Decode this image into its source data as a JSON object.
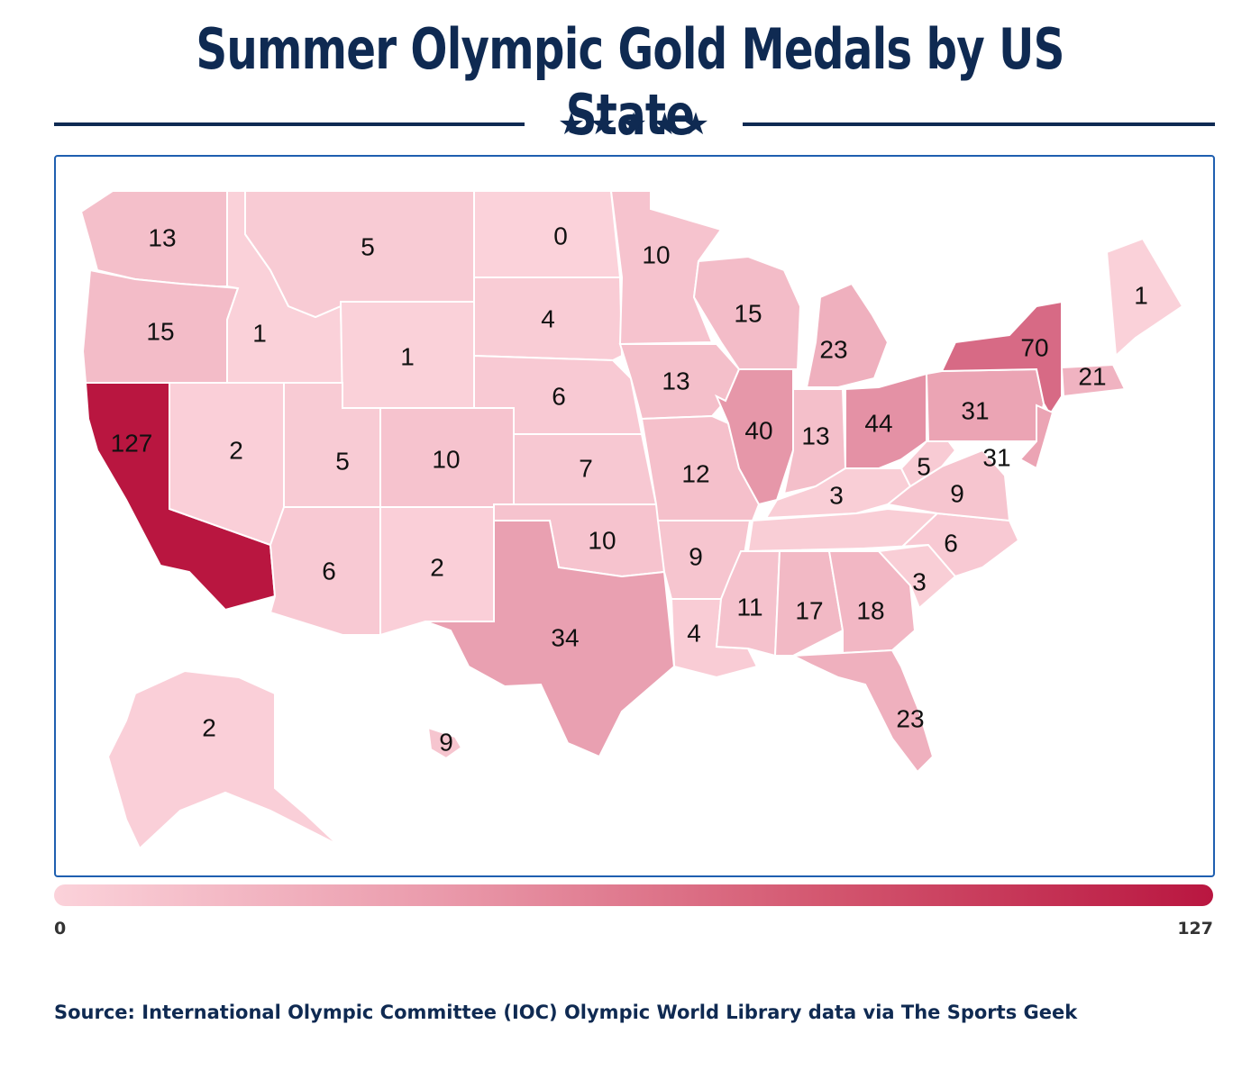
{
  "title": "Summer Olympic Gold Medals by US State",
  "stars": "★★★★★",
  "legend": {
    "min": "0",
    "max": "127",
    "colors": [
      "#fbd2da",
      "#b91640"
    ]
  },
  "source": "Source: International Olympic Committee (IOC) Olympic World Library data via The Sports Geek",
  "states": [
    {
      "abbr": "WA",
      "value": 13
    },
    {
      "abbr": "OR",
      "value": 15
    },
    {
      "abbr": "CA",
      "value": 127
    },
    {
      "abbr": "ID",
      "value": 1
    },
    {
      "abbr": "NV",
      "value": 2
    },
    {
      "abbr": "MT",
      "value": 5
    },
    {
      "abbr": "WY",
      "value": 1
    },
    {
      "abbr": "UT",
      "value": 5
    },
    {
      "abbr": "AZ",
      "value": 6
    },
    {
      "abbr": "CO",
      "value": 10
    },
    {
      "abbr": "NM",
      "value": 2
    },
    {
      "abbr": "ND",
      "value": 0
    },
    {
      "abbr": "SD",
      "value": 4
    },
    {
      "abbr": "NE",
      "value": 6
    },
    {
      "abbr": "KS",
      "value": 7
    },
    {
      "abbr": "OK",
      "value": 10
    },
    {
      "abbr": "TX",
      "value": 34
    },
    {
      "abbr": "MN",
      "value": 10
    },
    {
      "abbr": "IA",
      "value": 13
    },
    {
      "abbr": "MO",
      "value": 12
    },
    {
      "abbr": "AR",
      "value": 9
    },
    {
      "abbr": "LA",
      "value": 4
    },
    {
      "abbr": "WI",
      "value": 15
    },
    {
      "abbr": "IL",
      "value": 40
    },
    {
      "abbr": "MI",
      "value": 23
    },
    {
      "abbr": "IN",
      "value": 13
    },
    {
      "abbr": "OH",
      "value": 44
    },
    {
      "abbr": "KY",
      "value": 3
    },
    {
      "abbr": "TN",
      "value": null
    },
    {
      "abbr": "MS",
      "value": 11
    },
    {
      "abbr": "AL",
      "value": 17
    },
    {
      "abbr": "GA",
      "value": 18
    },
    {
      "abbr": "FL",
      "value": 23
    },
    {
      "abbr": "SC",
      "value": 3
    },
    {
      "abbr": "NC",
      "value": 6
    },
    {
      "abbr": "VA",
      "value": 9
    },
    {
      "abbr": "WV",
      "value": 5
    },
    {
      "abbr": "PA",
      "value": 31
    },
    {
      "abbr": "NY",
      "value": 70
    },
    {
      "abbr": "NJ",
      "value": 31
    },
    {
      "abbr": "MA",
      "value": 21
    },
    {
      "abbr": "ME",
      "value": 1
    },
    {
      "abbr": "AK",
      "value": 2
    },
    {
      "abbr": "HI",
      "value": 9
    }
  ]
}
